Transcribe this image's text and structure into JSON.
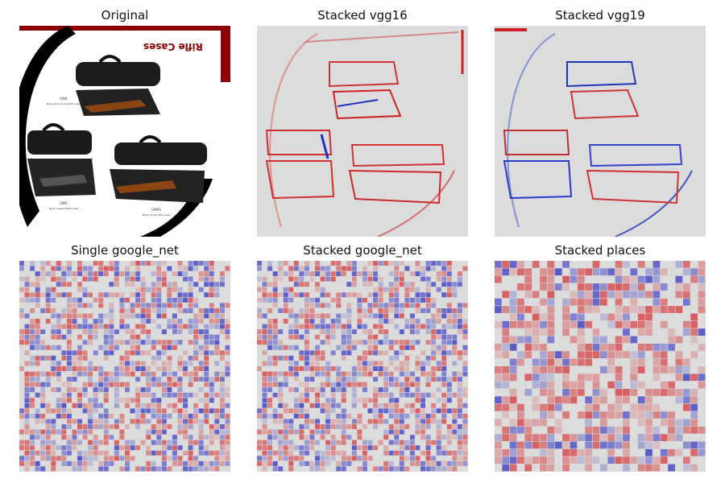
{
  "figure": {
    "panels": [
      {
        "title": "Original",
        "kind": "photo"
      },
      {
        "title": "Stacked vgg16",
        "kind": "edge-map"
      },
      {
        "title": "Stacked vgg19",
        "kind": "edge-map"
      },
      {
        "title": "Single google_net",
        "kind": "block-map"
      },
      {
        "title": "Stacked google_net",
        "kind": "block-map"
      },
      {
        "title": "Stacked places",
        "kind": "coarse-block-map"
      }
    ],
    "photo_text": {
      "brand": "Rifle Cases",
      "item_a_code": "GMA",
      "item_a_desc": "Nylon Rear Scope Rifle Case",
      "item_b_code": "GMA",
      "item_b_desc": "Nylon Assault Rifle Case",
      "item_c_code": "GMRS",
      "item_c_desc": "Nylon Scope Rifle Case"
    },
    "colors": {
      "positive": "#d62728",
      "negative": "#1f1fbf",
      "neutral": "#d9d9d9",
      "accent_red": "#8b0000"
    }
  }
}
